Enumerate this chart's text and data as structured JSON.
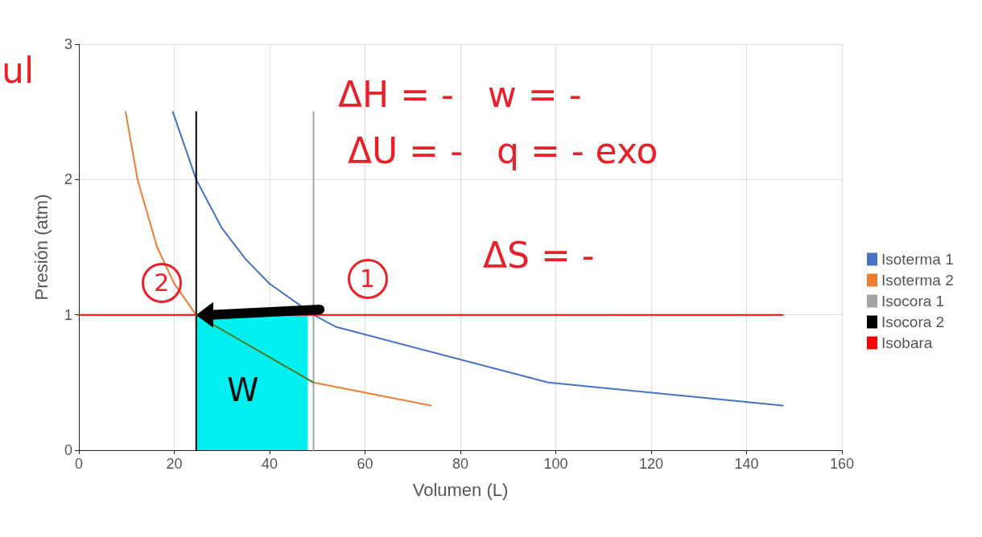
{
  "chart_data": {
    "type": "line",
    "xlabel": "Volumen (L)",
    "ylabel": "Presión (atm)",
    "xlim": [
      0,
      160
    ],
    "xticks": [
      0,
      20,
      40,
      60,
      80,
      100,
      120,
      140,
      160
    ],
    "ylim": [
      0,
      3
    ],
    "yticks": [
      0,
      1,
      2,
      3
    ],
    "series": [
      {
        "type": "area",
        "color": "#00f0f0",
        "x": [
          24.6,
          48
        ],
        "values": [
          1,
          1
        ]
      },
      {
        "name": "Isoterma 1",
        "color": "#4472c4",
        "x": [
          19.7,
          24.6,
          30,
          35,
          40,
          49.2,
          54,
          98.4,
          147.6
        ],
        "values": [
          2.5,
          2,
          1.64,
          1.41,
          1.23,
          1,
          0.91,
          0.5,
          0.33
        ]
      },
      {
        "name": "Isoterma 2",
        "color": "#ed7d31",
        "x": [
          9.8,
          12.3,
          16.4,
          20,
          24.6,
          49.2,
          73.8
        ],
        "values": [
          2.5,
          2,
          1.5,
          1.23,
          1,
          0.5,
          0.33
        ]
      },
      {
        "name": "Isocora 1",
        "color": "#a5a5a5",
        "x": [
          49.2,
          49.2
        ],
        "values": [
          0,
          2.5
        ]
      },
      {
        "name": "Isocora 2",
        "color": "#000000",
        "x": [
          24.6,
          24.6
        ],
        "values": [
          0,
          2.5
        ]
      },
      {
        "name": "Isobara",
        "color": "#ff0000",
        "x": [
          0,
          147.6
        ],
        "values": [
          1,
          1
        ]
      },
      {
        "color": "#2e8b3e",
        "x": [
          24.6,
          49.2
        ],
        "values": [
          1,
          0.5
        ]
      }
    ],
    "annotations": [
      "ul",
      "ΔH = -   w = -",
      "ΔU = -   q = - exo",
      "ΔS = -",
      {
        "text": "2",
        "x": 24.6,
        "y": 1
      },
      {
        "text": "1",
        "x": 49.2,
        "y": 1
      },
      "W"
    ],
    "grid": true,
    "legend": "right",
    "marker": "none",
    "line_style": "solid"
  }
}
